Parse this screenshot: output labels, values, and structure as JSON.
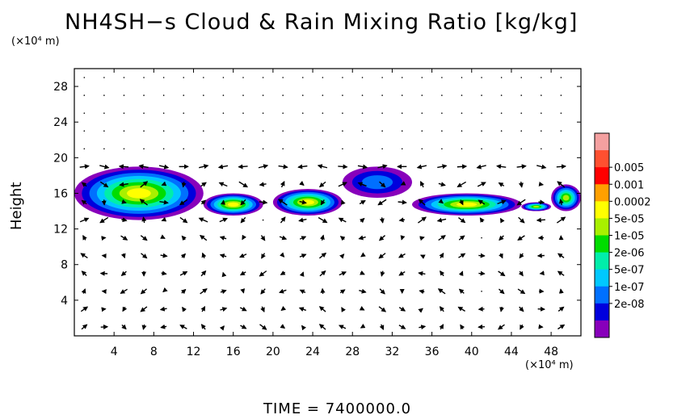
{
  "title": "NH4SH−s Cloud & Rain Mixing Ratio [kg/kg]",
  "y_unit_label": "(×10⁴ m)",
  "x_unit_label": "(×10⁴ m)",
  "time_label": "TIME  =  7400000.0",
  "chart_data": {
    "type": "heatmap",
    "title": "NH4SH−s Cloud & Rain Mixing Ratio [kg/kg]",
    "xlabel": "(×10⁴ m)",
    "ylabel": "Height",
    "xlim": [
      0,
      51
    ],
    "ylim": [
      0,
      30
    ],
    "x_ticks": [
      4,
      8,
      12,
      16,
      20,
      24,
      28,
      32,
      36,
      40,
      44,
      48
    ],
    "y_ticks": [
      4,
      8,
      12,
      16,
      20,
      24,
      28
    ],
    "overlay": "wind vector arrows",
    "colorbar": {
      "scale": "log",
      "labels": [
        "0.005",
        "0.001",
        "0.0002",
        "5e-05",
        "1e-05",
        "2e-06",
        "5e-07",
        "1e-07",
        "2e-08"
      ],
      "colors": [
        "#f4a0a0",
        "#ff5030",
        "#ff0000",
        "#ffa000",
        "#ffff00",
        "#a8f000",
        "#00dd00",
        "#00eeaa",
        "#00c8ff",
        "#0070ff",
        "#0000dd",
        "#8800bb"
      ]
    },
    "cloud_regions": [
      {
        "x_range": [
          0,
          13
        ],
        "y_range": [
          13,
          19
        ],
        "peak": "0.0002"
      },
      {
        "x_range": [
          13,
          19
        ],
        "y_range": [
          13.5,
          16
        ],
        "peak": "0.0002"
      },
      {
        "x_range": [
          20,
          27
        ],
        "y_range": [
          13.5,
          16.5
        ],
        "peak": "0.0002"
      },
      {
        "x_range": [
          27,
          34
        ],
        "y_range": [
          15.5,
          19
        ],
        "peak": "1e-07"
      },
      {
        "x_range": [
          34,
          45
        ],
        "y_range": [
          13.5,
          16
        ],
        "peak": "0.0002"
      },
      {
        "x_range": [
          45,
          48
        ],
        "y_range": [
          14,
          15
        ],
        "peak": "5e-05"
      },
      {
        "x_range": [
          48,
          51
        ],
        "y_range": [
          14,
          17
        ],
        "peak": "5e-05"
      }
    ]
  }
}
